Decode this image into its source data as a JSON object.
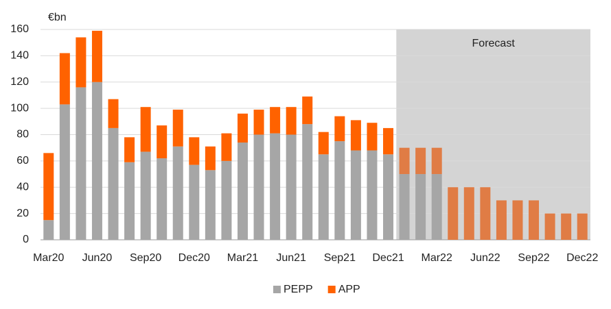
{
  "chart_data": {
    "type": "stacked_bar",
    "y_label": "€bn",
    "categories": [
      "Mar20",
      null,
      null,
      "Jun20",
      null,
      null,
      "Sep20",
      null,
      null,
      "Dec20",
      null,
      null,
      "Mar21",
      null,
      null,
      "Jun21",
      null,
      null,
      "Sep21",
      null,
      null,
      "Dec21",
      null,
      null,
      "Mar22",
      null,
      null,
      "Jun22",
      null,
      null,
      "Sep22",
      null,
      null,
      "Dec22"
    ],
    "series": [
      {
        "name": "PEPP",
        "color": "#a6a6a6",
        "forecast_color": "#a6a6a6",
        "values": [
          15,
          103,
          116,
          120,
          85,
          59,
          67,
          62,
          71,
          57,
          53,
          60,
          74,
          80,
          81,
          80,
          88,
          65,
          75,
          68,
          68,
          65,
          50,
          50,
          50,
          0,
          0,
          0,
          0,
          0,
          0,
          0,
          0,
          0
        ]
      },
      {
        "name": "APP",
        "color": "#ff6200",
        "forecast_color": "#e07c45",
        "values": [
          51,
          39,
          38,
          39,
          22,
          19,
          34,
          25,
          28,
          21,
          18,
          21,
          22,
          19,
          20,
          21,
          21,
          17,
          19,
          23,
          21,
          20,
          20,
          20,
          20,
          40,
          40,
          40,
          30,
          30,
          30,
          20,
          20,
          20
        ]
      }
    ],
    "forecast": {
      "label": "Forecast",
      "start": 22,
      "color": "#d4d4d4"
    },
    "ylim": [
      0,
      160
    ],
    "yticks": [
      0,
      20,
      40,
      60,
      80,
      100,
      120,
      140,
      160
    ],
    "grid": true,
    "legend": "bottom"
  }
}
